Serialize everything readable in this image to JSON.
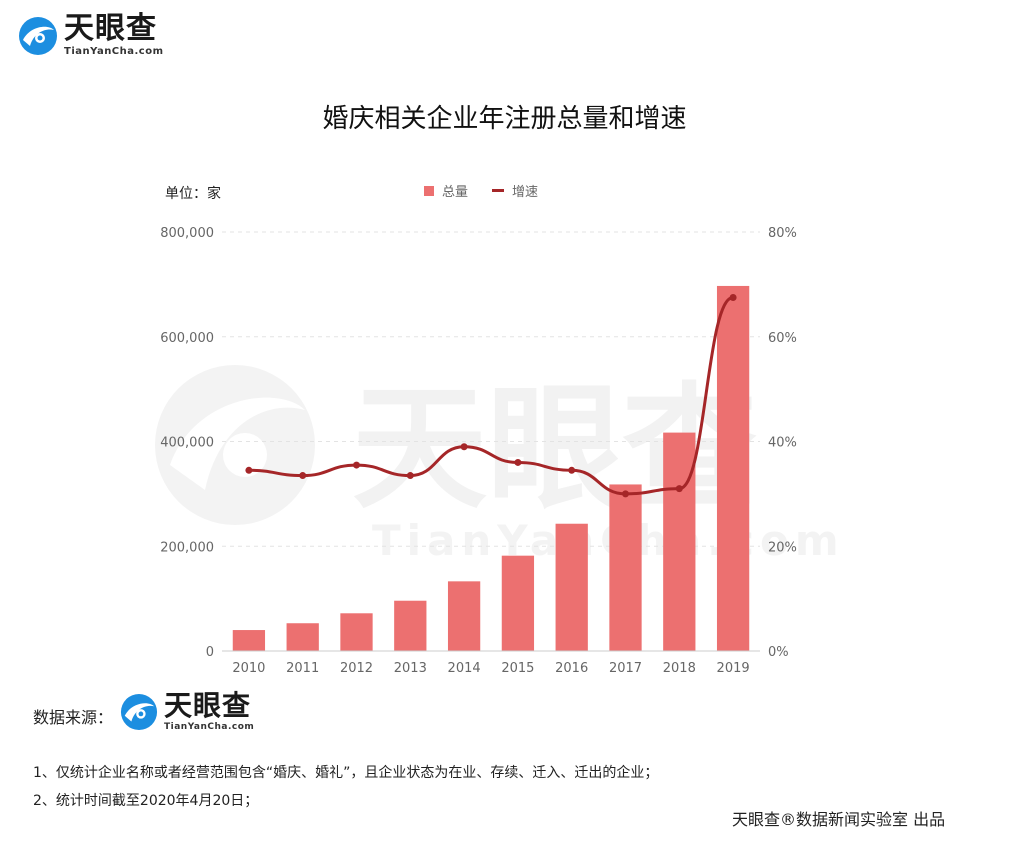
{
  "brand": {
    "name_cn": "天眼查",
    "name_en": "TianYanCha.com",
    "watermark_en": "TianYanCha.com"
  },
  "title": "婚庆相关企业年注册总量和增速",
  "unit_label": "单位：家",
  "legend": {
    "bar_label": "总量",
    "line_label": "增速"
  },
  "colors": {
    "bar": "#ec7070",
    "line": "#a52628",
    "grid": "#e3e3e3",
    "axis_text": "#666666",
    "watermark": "#f2f2f2"
  },
  "chart_data": {
    "type": "bar",
    "categories": [
      "2010",
      "2011",
      "2012",
      "2013",
      "2014",
      "2015",
      "2016",
      "2017",
      "2018",
      "2019"
    ],
    "series": [
      {
        "name": "总量",
        "type": "bar",
        "axis": "left",
        "values": [
          40000,
          53000,
          72000,
          96000,
          133000,
          182000,
          243000,
          318000,
          417000,
          697000
        ]
      },
      {
        "name": "增速",
        "type": "line",
        "axis": "right",
        "values": [
          34.5,
          33.5,
          35.5,
          33.5,
          39,
          36,
          34.5,
          30,
          31,
          67.5
        ]
      }
    ],
    "y_left": {
      "min": 0,
      "max": 800000,
      "ticks": [
        "0",
        "200,000",
        "400,000",
        "600,000",
        "800,000"
      ]
    },
    "y_right": {
      "min": 0,
      "max": 80,
      "ticks": [
        "0%",
        "20%",
        "40%",
        "60%",
        "80%"
      ]
    },
    "grid": true,
    "legend_position": "top-center"
  },
  "footer": {
    "source_label": "数据来源：",
    "note1": "1、仅统计企业名称或者经营范围包含“婚庆、婚礼”，且企业状态为在业、存续、迁入、迁出的企业；",
    "note2": "2、统计时间截至2020年4月20日；",
    "credit": "天眼查®数据新闻实验室 出品"
  }
}
